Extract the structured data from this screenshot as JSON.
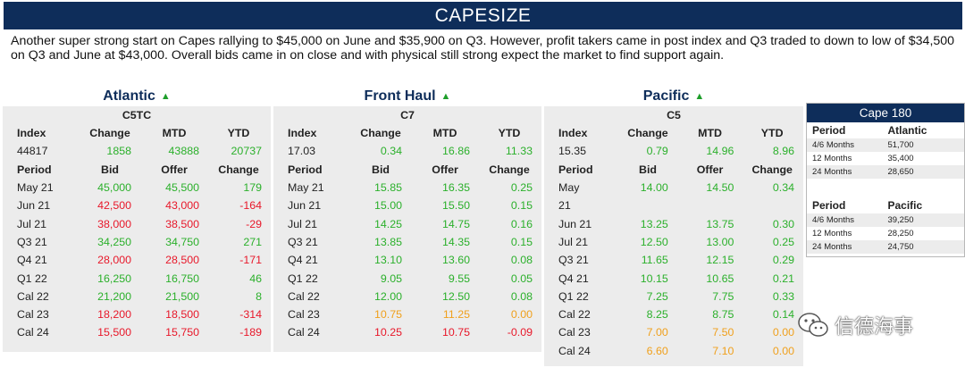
{
  "banner": "CAPESIZE",
  "intro": "Another super strong start on Capes rallying to $45,000 on June and $35,900 on Q3. However, profit takers came in post index and Q3 traded to down to low of $34,500 on Q3 and June at $43,000. Overall bids came in on close and with physical still strong expect the market to find support again.",
  "colors": {
    "banner": "#0e2d5a",
    "up": "#2bb02b",
    "down": "#e8182a",
    "neutral": "#f0a01c",
    "panel": "#ececec"
  },
  "panels": [
    {
      "title": "Atlantic",
      "trend": "▲",
      "code": "C5TC",
      "index_header": [
        "Index",
        "Change",
        "MTD",
        "YTD"
      ],
      "index_row": [
        {
          "v": "44817",
          "c": ""
        },
        {
          "v": "1858",
          "c": "g"
        },
        {
          "v": "43888",
          "c": "g"
        },
        {
          "v": "20737",
          "c": "g"
        }
      ],
      "period_header": [
        "Period",
        "Bid",
        "Offer",
        "Change"
      ],
      "rows": [
        [
          {
            "v": "May 21",
            "c": ""
          },
          {
            "v": "45,000",
            "c": "g"
          },
          {
            "v": "45,500",
            "c": "g"
          },
          {
            "v": "179",
            "c": "g"
          }
        ],
        [
          {
            "v": "Jun 21",
            "c": ""
          },
          {
            "v": "42,500",
            "c": "r"
          },
          {
            "v": "43,000",
            "c": "r"
          },
          {
            "v": "-164",
            "c": "r"
          }
        ],
        [
          {
            "v": "Jul 21",
            "c": ""
          },
          {
            "v": "38,000",
            "c": "r"
          },
          {
            "v": "38,500",
            "c": "r"
          },
          {
            "v": "-29",
            "c": "r"
          }
        ],
        [
          {
            "v": "Q3 21",
            "c": ""
          },
          {
            "v": "34,250",
            "c": "g"
          },
          {
            "v": "34,750",
            "c": "g"
          },
          {
            "v": "271",
            "c": "g"
          }
        ],
        [
          {
            "v": "Q4 21",
            "c": ""
          },
          {
            "v": "28,000",
            "c": "r"
          },
          {
            "v": "28,500",
            "c": "r"
          },
          {
            "v": "-171",
            "c": "r"
          }
        ],
        [
          {
            "v": "Q1 22",
            "c": ""
          },
          {
            "v": "16,250",
            "c": "g"
          },
          {
            "v": "16,750",
            "c": "g"
          },
          {
            "v": "46",
            "c": "g"
          }
        ],
        [
          {
            "v": "Cal 22",
            "c": ""
          },
          {
            "v": "21,200",
            "c": "g"
          },
          {
            "v": "21,500",
            "c": "g"
          },
          {
            "v": "8",
            "c": "g"
          }
        ],
        [
          {
            "v": "Cal 23",
            "c": ""
          },
          {
            "v": "18,200",
            "c": "r"
          },
          {
            "v": "18,500",
            "c": "r"
          },
          {
            "v": "-314",
            "c": "r"
          }
        ],
        [
          {
            "v": "Cal 24",
            "c": ""
          },
          {
            "v": "15,500",
            "c": "r"
          },
          {
            "v": "15,750",
            "c": "r"
          },
          {
            "v": "-189",
            "c": "r"
          }
        ]
      ]
    },
    {
      "title": "Front Haul",
      "trend": "▲",
      "code": "C7",
      "index_header": [
        "Index",
        "Change",
        "MTD",
        "YTD"
      ],
      "index_row": [
        {
          "v": "17.03",
          "c": ""
        },
        {
          "v": "0.34",
          "c": "g"
        },
        {
          "v": "16.86",
          "c": "g"
        },
        {
          "v": "11.33",
          "c": "g"
        }
      ],
      "period_header": [
        "Period",
        "Bid",
        "Offer",
        "Change"
      ],
      "rows": [
        [
          {
            "v": "May 21",
            "c": ""
          },
          {
            "v": "15.85",
            "c": "g"
          },
          {
            "v": "16.35",
            "c": "g"
          },
          {
            "v": "0.25",
            "c": "g"
          }
        ],
        [
          {
            "v": "Jun 21",
            "c": ""
          },
          {
            "v": "15.00",
            "c": "g"
          },
          {
            "v": "15.50",
            "c": "g"
          },
          {
            "v": "0.15",
            "c": "g"
          }
        ],
        [
          {
            "v": "Jul 21",
            "c": ""
          },
          {
            "v": "14.25",
            "c": "g"
          },
          {
            "v": "14.75",
            "c": "g"
          },
          {
            "v": "0.16",
            "c": "g"
          }
        ],
        [
          {
            "v": "Q3 21",
            "c": ""
          },
          {
            "v": "13.85",
            "c": "g"
          },
          {
            "v": "14.35",
            "c": "g"
          },
          {
            "v": "0.15",
            "c": "g"
          }
        ],
        [
          {
            "v": "Q4 21",
            "c": ""
          },
          {
            "v": "13.10",
            "c": "g"
          },
          {
            "v": "13.60",
            "c": "g"
          },
          {
            "v": "0.08",
            "c": "g"
          }
        ],
        [
          {
            "v": "Q1 22",
            "c": ""
          },
          {
            "v": "9.05",
            "c": "g"
          },
          {
            "v": "9.55",
            "c": "g"
          },
          {
            "v": "0.05",
            "c": "g"
          }
        ],
        [
          {
            "v": "Cal 22",
            "c": ""
          },
          {
            "v": "12.00",
            "c": "g"
          },
          {
            "v": "12.50",
            "c": "g"
          },
          {
            "v": "0.08",
            "c": "g"
          }
        ],
        [
          {
            "v": "Cal 23",
            "c": ""
          },
          {
            "v": "10.75",
            "c": "o"
          },
          {
            "v": "11.25",
            "c": "o"
          },
          {
            "v": "0.00",
            "c": "o"
          }
        ],
        [
          {
            "v": "Cal 24",
            "c": ""
          },
          {
            "v": "10.25",
            "c": "r"
          },
          {
            "v": "10.75",
            "c": "r"
          },
          {
            "v": "-0.09",
            "c": "r"
          }
        ]
      ]
    },
    {
      "title": "Pacific",
      "trend": "▲",
      "code": "C5",
      "index_header": [
        "Index",
        "Change",
        "MTD",
        "YTD"
      ],
      "index_row": [
        {
          "v": "15.35",
          "c": ""
        },
        {
          "v": "0.79",
          "c": "g"
        },
        {
          "v": "14.96",
          "c": "g"
        },
        {
          "v": "8.96",
          "c": "g"
        }
      ],
      "period_header": [
        "Period",
        "Bid",
        "Offer",
        "Change"
      ],
      "rows": [
        [
          {
            "v": "May",
            "c": ""
          },
          {
            "v": "14.00",
            "c": "g"
          },
          {
            "v": "14.50",
            "c": "g"
          },
          {
            "v": "0.34",
            "c": "g"
          }
        ],
        [
          {
            "v": "21",
            "c": ""
          },
          {
            "v": "",
            "c": ""
          },
          {
            "v": "",
            "c": ""
          },
          {
            "v": "",
            "c": ""
          }
        ],
        [
          {
            "v": "Jun 21",
            "c": ""
          },
          {
            "v": "13.25",
            "c": "g"
          },
          {
            "v": "13.75",
            "c": "g"
          },
          {
            "v": "0.30",
            "c": "g"
          }
        ],
        [
          {
            "v": "Jul 21",
            "c": ""
          },
          {
            "v": "12.50",
            "c": "g"
          },
          {
            "v": "13.00",
            "c": "g"
          },
          {
            "v": "0.25",
            "c": "g"
          }
        ],
        [
          {
            "v": "Q3 21",
            "c": ""
          },
          {
            "v": "11.65",
            "c": "g"
          },
          {
            "v": "12.15",
            "c": "g"
          },
          {
            "v": "0.29",
            "c": "g"
          }
        ],
        [
          {
            "v": "Q4 21",
            "c": ""
          },
          {
            "v": "10.15",
            "c": "g"
          },
          {
            "v": "10.65",
            "c": "g"
          },
          {
            "v": "0.21",
            "c": "g"
          }
        ],
        [
          {
            "v": "Q1 22",
            "c": ""
          },
          {
            "v": "7.25",
            "c": "g"
          },
          {
            "v": "7.75",
            "c": "g"
          },
          {
            "v": "0.33",
            "c": "g"
          }
        ],
        [
          {
            "v": "Cal 22",
            "c": ""
          },
          {
            "v": "8.25",
            "c": "g"
          },
          {
            "v": "8.75",
            "c": "g"
          },
          {
            "v": "0.14",
            "c": "g"
          }
        ],
        [
          {
            "v": "Cal 23",
            "c": ""
          },
          {
            "v": "7.00",
            "c": "o"
          },
          {
            "v": "7.50",
            "c": "o"
          },
          {
            "v": "0.00",
            "c": "o"
          }
        ],
        [
          {
            "v": "Cal 24",
            "c": ""
          },
          {
            "v": "6.60",
            "c": "o"
          },
          {
            "v": "7.10",
            "c": "o"
          },
          {
            "v": "0.00",
            "c": "o"
          }
        ]
      ]
    }
  ],
  "cape180": {
    "title": "Cape 180",
    "atlantic": {
      "headers": [
        "Period",
        "Atlantic"
      ],
      "rows": [
        [
          "4/6 Months",
          "51,700"
        ],
        [
          "12 Months",
          "35,400"
        ],
        [
          "24 Months",
          "28,650"
        ]
      ]
    },
    "pacific": {
      "headers": [
        "Period",
        "Pacific"
      ],
      "rows": [
        [
          "4/6 Months",
          "39,250"
        ],
        [
          "12 Months",
          "28,250"
        ],
        [
          "24 Months",
          "24,750"
        ]
      ]
    }
  },
  "watermark": "信德海事"
}
